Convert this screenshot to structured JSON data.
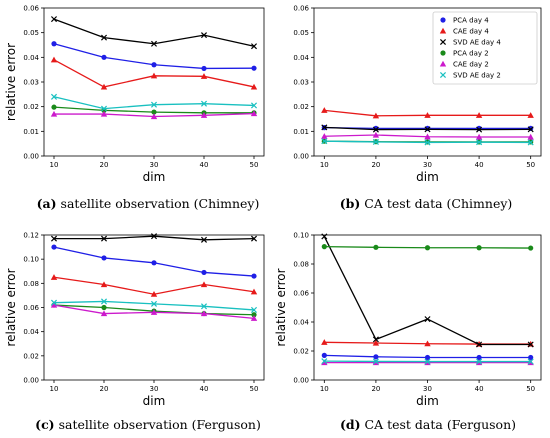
{
  "legend": {
    "entries": [
      {
        "label": "PCA day 4",
        "color": "#1f1fe6",
        "marker": "circle"
      },
      {
        "label": "CAE day 4",
        "color": "#e61a1a",
        "marker": "triangle"
      },
      {
        "label": "SVD AE day 4",
        "color": "#000000",
        "marker": "x"
      },
      {
        "label": "PCA day 2",
        "color": "#1a8a1a",
        "marker": "circle"
      },
      {
        "label": "CAE day 2",
        "color": "#cc1acc",
        "marker": "triangle"
      },
      {
        "label": "SVD AE day 2",
        "color": "#19c0c0",
        "marker": "x"
      }
    ]
  },
  "chart_data": [
    {
      "type": "line",
      "caption_letter": "(a)",
      "caption_text": "satellite observation (Chimney)",
      "xlabel": "dim",
      "ylabel": "relative error",
      "x": [
        10,
        20,
        30,
        40,
        50
      ],
      "xticks": [
        "10",
        "20",
        "30",
        "40",
        "50"
      ],
      "ylim": [
        0,
        0.06
      ],
      "yticks": [
        "0.00",
        "0.01",
        "0.02",
        "0.03",
        "0.04",
        "0.05",
        "0.06"
      ],
      "series": [
        {
          "values": [
            0.0455,
            0.04,
            0.037,
            0.0355,
            0.0356
          ]
        },
        {
          "values": [
            0.039,
            0.028,
            0.0325,
            0.0323,
            0.028
          ]
        },
        {
          "values": [
            0.0555,
            0.048,
            0.0455,
            0.049,
            0.0445
          ]
        },
        {
          "values": [
            0.0198,
            0.0185,
            0.0178,
            0.0175,
            0.0175
          ]
        },
        {
          "values": [
            0.017,
            0.017,
            0.016,
            0.0165,
            0.0172
          ]
        },
        {
          "values": [
            0.024,
            0.0192,
            0.0208,
            0.0212,
            0.0205
          ]
        }
      ]
    },
    {
      "type": "line",
      "caption_letter": "(b)",
      "caption_text": "CA test data (Chimney)",
      "xlabel": "dim",
      "ylabel": "",
      "x": [
        10,
        20,
        30,
        40,
        50
      ],
      "xticks": [
        "10",
        "20",
        "30",
        "40",
        "50"
      ],
      "ylim": [
        0,
        0.06
      ],
      "yticks": [
        "0.00",
        "0.01",
        "0.02",
        "0.03",
        "0.04",
        "0.05",
        "0.06"
      ],
      "legend": "top-right",
      "series": [
        {
          "values": [
            0.0115,
            0.0112,
            0.0112,
            0.0112,
            0.0112
          ]
        },
        {
          "values": [
            0.0185,
            0.0163,
            0.0165,
            0.0165,
            0.0165
          ]
        },
        {
          "values": [
            0.0116,
            0.0107,
            0.0108,
            0.0107,
            0.0108
          ]
        },
        {
          "values": [
            0.006,
            0.0058,
            0.0057,
            0.0057,
            0.0057
          ]
        },
        {
          "values": [
            0.008,
            0.0085,
            0.0078,
            0.0077,
            0.0077
          ]
        },
        {
          "values": [
            0.006,
            0.0057,
            0.0055,
            0.0056,
            0.0055
          ]
        }
      ]
    },
    {
      "type": "line",
      "caption_letter": "(c)",
      "caption_text": "satellite observation (Ferguson)",
      "xlabel": "dim",
      "ylabel": "relative error",
      "x": [
        10,
        20,
        30,
        40,
        50
      ],
      "xticks": [
        "10",
        "20",
        "30",
        "40",
        "50"
      ],
      "ylim": [
        0,
        0.12
      ],
      "yticks": [
        "0.00",
        "0.02",
        "0.04",
        "0.06",
        "0.08",
        "0.10",
        "0.12"
      ],
      "series": [
        {
          "values": [
            0.11,
            0.101,
            0.097,
            0.089,
            0.086
          ]
        },
        {
          "values": [
            0.085,
            0.079,
            0.071,
            0.079,
            0.073
          ]
        },
        {
          "values": [
            0.117,
            0.117,
            0.119,
            0.116,
            0.117
          ]
        },
        {
          "values": [
            0.062,
            0.06,
            0.057,
            0.055,
            0.054
          ]
        },
        {
          "values": [
            0.062,
            0.055,
            0.056,
            0.055,
            0.051
          ]
        },
        {
          "values": [
            0.064,
            0.065,
            0.063,
            0.061,
            0.058
          ]
        }
      ]
    },
    {
      "type": "line",
      "caption_letter": "(d)",
      "caption_text": "CA test data (Ferguson)",
      "xlabel": "dim",
      "ylabel": "relative error",
      "x": [
        10,
        20,
        30,
        40,
        50
      ],
      "xticks": [
        "10",
        "20",
        "30",
        "40",
        "50"
      ],
      "ylim": [
        0,
        0.1
      ],
      "yticks": [
        "0.00",
        "0.02",
        "0.04",
        "0.06",
        "0.08",
        "0.10"
      ],
      "series": [
        {
          "values": [
            0.017,
            0.016,
            0.0155,
            0.0155,
            0.0155
          ]
        },
        {
          "values": [
            0.026,
            0.0255,
            0.025,
            0.0248,
            0.0248
          ]
        },
        {
          "values": [
            0.099,
            0.028,
            0.042,
            0.0245,
            0.0245
          ]
        },
        {
          "values": [
            0.092,
            0.0915,
            0.0912,
            0.0912,
            0.091
          ]
        },
        {
          "values": [
            0.012,
            0.012,
            0.012,
            0.012,
            0.012
          ]
        },
        {
          "values": [
            0.013,
            0.0128,
            0.0127,
            0.0127,
            0.0127
          ]
        }
      ]
    }
  ]
}
